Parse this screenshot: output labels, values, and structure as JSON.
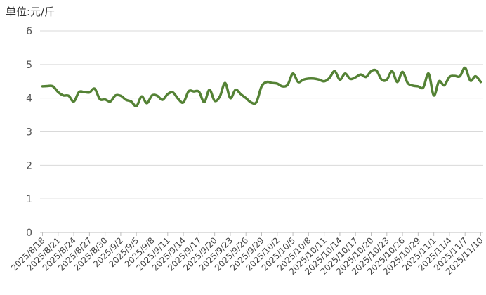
{
  "chart_data": {
    "type": "line",
    "unit_label": "单位:元/斤",
    "ylim": [
      0,
      6
    ],
    "yticks": [
      0,
      1,
      2,
      3,
      4,
      5,
      6
    ],
    "grid": true,
    "legend": "none",
    "line_color": "#548235",
    "grid_color": "#d9d9d9",
    "axis_color": "#bfbfbf",
    "x_tick_labels": [
      "2025/8/18",
      "2025/8/21",
      "2025/8/24",
      "2025/8/27",
      "2025/8/30",
      "2025/9/2",
      "2025/9/5",
      "2025/9/8",
      "2025/9/11",
      "2025/9/14",
      "2025/9/17",
      "2025/9/20",
      "2025/9/23",
      "2025/9/26",
      "2025/9/29",
      "2025/10/2",
      "2025/10/5",
      "2025/10/8",
      "2025/10/11",
      "2025/10/14",
      "2025/10/17",
      "2025/10/20",
      "2025/10/23",
      "2025/10/26",
      "2025/10/29",
      "2025/11/1",
      "2025/11/4",
      "2025/11/7",
      "2025/11/10"
    ],
    "x": [
      "2025/8/18",
      "2025/8/19",
      "2025/8/20",
      "2025/8/21",
      "2025/8/22",
      "2025/8/23",
      "2025/8/24",
      "2025/8/25",
      "2025/8/26",
      "2025/8/27",
      "2025/8/28",
      "2025/8/29",
      "2025/8/30",
      "2025/8/31",
      "2025/9/1",
      "2025/9/2",
      "2025/9/3",
      "2025/9/4",
      "2025/9/5",
      "2025/9/6",
      "2025/9/7",
      "2025/9/8",
      "2025/9/9",
      "2025/9/10",
      "2025/9/11",
      "2025/9/12",
      "2025/9/13",
      "2025/9/14",
      "2025/9/15",
      "2025/9/16",
      "2025/9/17",
      "2025/9/18",
      "2025/9/19",
      "2025/9/20",
      "2025/9/21",
      "2025/9/22",
      "2025/9/23",
      "2025/9/24",
      "2025/9/25",
      "2025/9/26",
      "2025/9/27",
      "2025/9/28",
      "2025/9/29",
      "2025/9/30",
      "2025/10/1",
      "2025/10/2",
      "2025/10/3",
      "2025/10/4",
      "2025/10/5",
      "2025/10/6",
      "2025/10/7",
      "2025/10/8",
      "2025/10/9",
      "2025/10/10",
      "2025/10/11",
      "2025/10/12",
      "2025/10/13",
      "2025/10/14",
      "2025/10/15",
      "2025/10/16",
      "2025/10/17",
      "2025/10/18",
      "2025/10/19",
      "2025/10/20",
      "2025/10/21",
      "2025/10/22",
      "2025/10/23",
      "2025/10/24",
      "2025/10/25",
      "2025/10/26",
      "2025/10/27",
      "2025/10/28",
      "2025/10/29",
      "2025/10/30",
      "2025/10/31",
      "2025/11/1",
      "2025/11/2",
      "2025/11/3",
      "2025/11/4",
      "2025/11/5",
      "2025/11/6",
      "2025/11/7",
      "2025/11/8",
      "2025/11/9",
      "2025/11/10"
    ],
    "series": [
      {
        "values": [
          4.35,
          4.36,
          4.35,
          4.18,
          4.08,
          4.07,
          3.9,
          4.18,
          4.18,
          4.17,
          4.28,
          3.97,
          3.96,
          3.9,
          4.08,
          4.07,
          3.95,
          3.9,
          3.76,
          4.05,
          3.85,
          4.08,
          4.07,
          3.95,
          4.12,
          4.17,
          3.98,
          3.87,
          4.2,
          4.2,
          4.19,
          3.88,
          4.25,
          3.92,
          4.05,
          4.45,
          4.0,
          4.25,
          4.12,
          4.0,
          3.87,
          3.88,
          4.35,
          4.48,
          4.45,
          4.43,
          4.35,
          4.4,
          4.73,
          4.48,
          4.55,
          4.58,
          4.58,
          4.55,
          4.5,
          4.6,
          4.8,
          4.55,
          4.73,
          4.57,
          4.62,
          4.7,
          4.63,
          4.8,
          4.82,
          4.55,
          4.55,
          4.8,
          4.48,
          4.78,
          4.45,
          4.37,
          4.35,
          4.32,
          4.73,
          4.08,
          4.5,
          4.38,
          4.63,
          4.66,
          4.65,
          4.9,
          4.52,
          4.65,
          4.48
        ]
      }
    ]
  }
}
